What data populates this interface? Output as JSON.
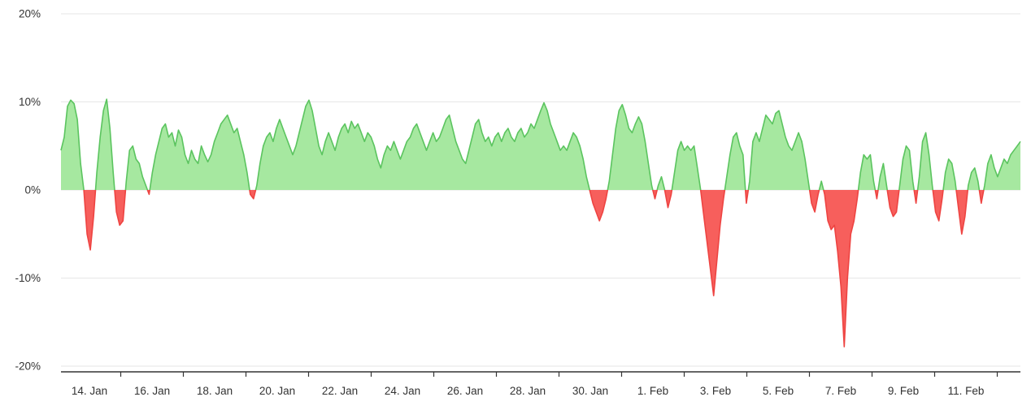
{
  "page": {
    "background": "#ffffff"
  },
  "chart_data": {
    "type": "area",
    "title": "",
    "xlabel": "",
    "ylabel": "",
    "ylim": [
      -20,
      20
    ],
    "grid": "horizontal",
    "legend": "none",
    "y_tick_labels": [
      "20%",
      "10%",
      "0%",
      "-10%",
      "-20%"
    ],
    "y_tick_values": [
      20,
      10,
      0,
      -10,
      -20
    ],
    "x_tick_labels": [
      "14. Jan",
      "16. Jan",
      "18. Jan",
      "20. Jan",
      "22. Jan",
      "24. Jan",
      "26. Jan",
      "28. Jan",
      "30. Jan",
      "1. Feb",
      "3. Feb",
      "5. Feb",
      "7. Feb",
      "9. Feb",
      "11. Feb"
    ],
    "x_range": [
      "13. Jan",
      "13. Feb"
    ],
    "positive_color": "#a6e8a0",
    "positive_line_color": "#5bc45f",
    "negative_color": "#f75f5c",
    "negative_line_color": "#ee4442",
    "grid_color": "#e6e6e6",
    "axis_color": "#333333",
    "values": [
      4.5,
      6.0,
      9.5,
      10.2,
      9.8,
      8.0,
      3.0,
      0.0,
      -5.0,
      -6.8,
      -3.0,
      2.0,
      6.0,
      9.0,
      10.3,
      7.0,
      2.0,
      -2.5,
      -4.0,
      -3.5,
      1.0,
      4.5,
      5.0,
      3.5,
      3.0,
      1.5,
      0.5,
      -0.5,
      2.0,
      4.0,
      5.5,
      7.0,
      7.5,
      6.0,
      6.5,
      5.0,
      6.8,
      6.0,
      4.0,
      3.0,
      4.5,
      3.5,
      3.0,
      5.0,
      4.0,
      3.2,
      4.0,
      5.5,
      6.5,
      7.5,
      8.0,
      8.5,
      7.5,
      6.5,
      7.0,
      5.5,
      4.0,
      2.0,
      -0.5,
      -1.0,
      0.5,
      3.0,
      5.0,
      6.0,
      6.5,
      5.5,
      7.0,
      8.0,
      7.0,
      6.0,
      5.0,
      4.0,
      5.0,
      6.5,
      8.0,
      9.5,
      10.2,
      9.0,
      7.0,
      5.0,
      4.0,
      5.5,
      6.5,
      5.5,
      4.5,
      6.0,
      7.0,
      7.5,
      6.5,
      7.8,
      7.0,
      7.5,
      6.5,
      5.5,
      6.5,
      6.0,
      5.0,
      3.5,
      2.5,
      4.0,
      5.0,
      4.5,
      5.5,
      4.5,
      3.5,
      4.5,
      5.5,
      6.0,
      7.0,
      7.5,
      6.5,
      5.5,
      4.5,
      5.5,
      6.5,
      5.5,
      6.0,
      7.0,
      8.0,
      8.5,
      7.0,
      5.5,
      4.5,
      3.5,
      3.0,
      4.5,
      6.0,
      7.5,
      8.0,
      6.5,
      5.5,
      6.0,
      5.0,
      6.0,
      6.5,
      5.5,
      6.5,
      7.0,
      6.0,
      5.5,
      6.5,
      7.0,
      6.0,
      6.5,
      7.5,
      7.0,
      8.0,
      9.0,
      9.9,
      9.0,
      7.5,
      6.5,
      5.5,
      4.5,
      5.0,
      4.5,
      5.5,
      6.5,
      6.0,
      5.0,
      3.5,
      1.5,
      0.0,
      -1.5,
      -2.5,
      -3.5,
      -2.5,
      -1.0,
      1.0,
      4.0,
      7.0,
      9.0,
      9.7,
      8.5,
      7.0,
      6.5,
      7.5,
      8.3,
      7.5,
      5.5,
      3.0,
      0.5,
      -1.0,
      0.5,
      1.5,
      0.0,
      -2.0,
      -0.5,
      2.0,
      4.5,
      5.5,
      4.5,
      5.0,
      4.5,
      5.0,
      2.5,
      0.0,
      -3.0,
      -6.0,
      -9.0,
      -12.0,
      -8.0,
      -4.0,
      -1.0,
      1.5,
      4.0,
      6.0,
      6.5,
      5.0,
      4.0,
      -1.5,
      1.0,
      5.5,
      6.5,
      5.5,
      7.0,
      8.5,
      8.0,
      7.5,
      8.7,
      9.0,
      7.5,
      6.0,
      5.0,
      4.5,
      5.5,
      6.5,
      5.5,
      3.5,
      1.0,
      -1.5,
      -2.5,
      -0.5,
      1.0,
      -0.5,
      -3.5,
      -4.5,
      -4.0,
      -7.0,
      -11.0,
      -17.8,
      -10.0,
      -5.0,
      -3.5,
      -1.0,
      2.0,
      4.0,
      3.5,
      4.0,
      1.0,
      -1.0,
      1.5,
      3.0,
      0.5,
      -2.0,
      -3.0,
      -2.5,
      0.5,
      3.5,
      5.0,
      4.5,
      1.0,
      -1.5,
      1.5,
      5.5,
      6.5,
      4.0,
      0.5,
      -2.5,
      -3.5,
      -1.0,
      2.0,
      3.5,
      3.0,
      1.0,
      -2.0,
      -5.0,
      -3.0,
      0.5,
      2.0,
      2.5,
      1.0,
      -1.5,
      0.5,
      3.0,
      4.0,
      2.5,
      1.5,
      2.5,
      3.5,
      3.0,
      4.0,
      4.5,
      5.0,
      5.5
    ]
  }
}
